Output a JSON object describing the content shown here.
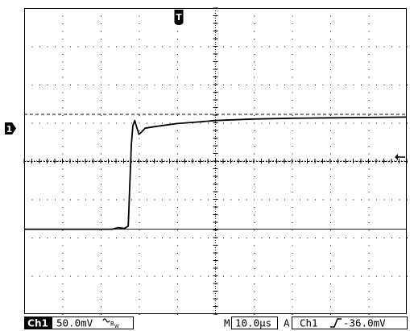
{
  "screen": {
    "colors": {
      "background": "#ffffff",
      "trace": "#000000",
      "grid": "#000000",
      "text": "#000000"
    }
  },
  "markers": {
    "trigger_position": {
      "label": "T",
      "icon": "trigger-position-marker-icon"
    },
    "channel1_ground": {
      "label": "1",
      "icon": "channel-1-ground-marker-icon"
    },
    "trigger_level": {
      "icon": "trigger-level-arrow-icon"
    }
  },
  "status_bar": {
    "channel": "Ch1",
    "volts_per_div": "50.0mV",
    "bandwidth_icon": "bandwidth-limit-icon",
    "timebase_prefix": "M",
    "timebase": "10.0µs",
    "trigger_source_prefix": "A",
    "trigger_source": "Ch1",
    "trigger_slope_icon": "rising-edge-icon",
    "trigger_level": "-36.0mV"
  },
  "chart_data": {
    "type": "line",
    "title": "",
    "xlabel": "",
    "ylabel": "",
    "grid": true,
    "x_divisions": 10,
    "y_divisions": 8,
    "xlim": [
      0,
      10
    ],
    "ylim": [
      -4,
      4
    ],
    "series": [
      {
        "name": "",
        "points": [
          [
            0.0,
            -1.78
          ],
          [
            2.3,
            -1.78
          ],
          [
            2.45,
            -1.74
          ],
          [
            2.62,
            -1.76
          ],
          [
            2.72,
            -1.7
          ],
          [
            2.8,
            0.4
          ],
          [
            2.84,
            0.92
          ],
          [
            2.89,
            1.06
          ],
          [
            2.95,
            0.86
          ],
          [
            3.0,
            0.7
          ],
          [
            3.07,
            0.76
          ],
          [
            3.16,
            0.86
          ],
          [
            3.4,
            0.9
          ],
          [
            3.7,
            0.94
          ],
          [
            4.0,
            0.98
          ],
          [
            4.5,
            1.02
          ],
          [
            5.0,
            1.06
          ],
          [
            5.5,
            1.08
          ],
          [
            6.0,
            1.1
          ],
          [
            7.0,
            1.12
          ],
          [
            8.0,
            1.13
          ],
          [
            9.0,
            1.14
          ],
          [
            10.0,
            1.15
          ]
        ]
      }
    ],
    "reference_lines": {
      "upper_dashed": 1.22,
      "trigger_level_dotted": 0.0,
      "solid_reference": -1.78
    }
  }
}
